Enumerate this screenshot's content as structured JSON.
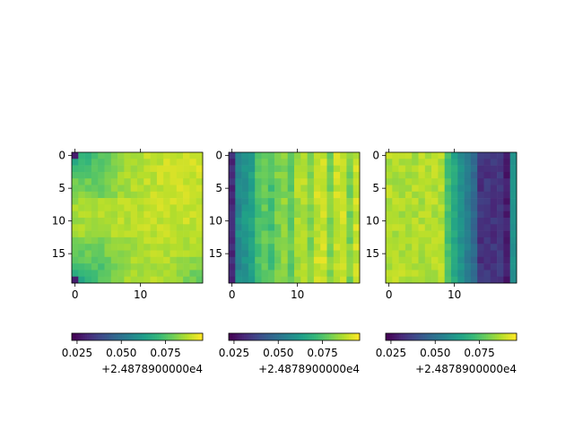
{
  "chart_data": [
    {
      "type": "heatmap",
      "colormap": "viridis",
      "x_ticks": [
        "0",
        "10"
      ],
      "y_ticks": [
        "0",
        "5",
        "10",
        "15"
      ],
      "colorbar": {
        "ticks": [
          "0.025",
          "0.050",
          "0.075"
        ],
        "offset_label": "+2.4878900000e4",
        "range": [
          0.022,
          0.096
        ]
      },
      "grid_shape": [
        20,
        20
      ],
      "pattern": "high (yellow) across most of the grid; lower (teal/green) at top-left and bottom-left corners and right edge near bottom; darkest single cell at top-left and bottom-left"
    },
    {
      "type": "heatmap",
      "colormap": "viridis",
      "x_ticks": [
        "0",
        "10"
      ],
      "y_ticks": [
        "0",
        "5",
        "10",
        "15"
      ],
      "colorbar": {
        "ticks": [
          "0.025",
          "0.050",
          "0.075"
        ],
        "offset_label": "+2.4878900000e4",
        "range": [
          0.022,
          0.096
        ]
      },
      "grid_shape": [
        20,
        20
      ],
      "pattern": "dark purple column at left edge, teal band in columns 1-4, rising to yellow toward the right with alternating green/yellow vertical stripes"
    },
    {
      "type": "heatmap",
      "colormap": "viridis",
      "x_ticks": [
        "0",
        "10"
      ],
      "y_ticks": [
        "0",
        "5",
        "10",
        "15"
      ],
      "colorbar": {
        "ticks": [
          "0.025",
          "0.050",
          "0.075"
        ],
        "offset_label": "+2.4878900000e4",
        "range": [
          0.022,
          0.096
        ]
      },
      "grid_shape": [
        20,
        20
      ],
      "pattern": "yellow on the left half, green around columns 10-12, dark purple/blue columns 14-18, teal at right edge"
    }
  ]
}
